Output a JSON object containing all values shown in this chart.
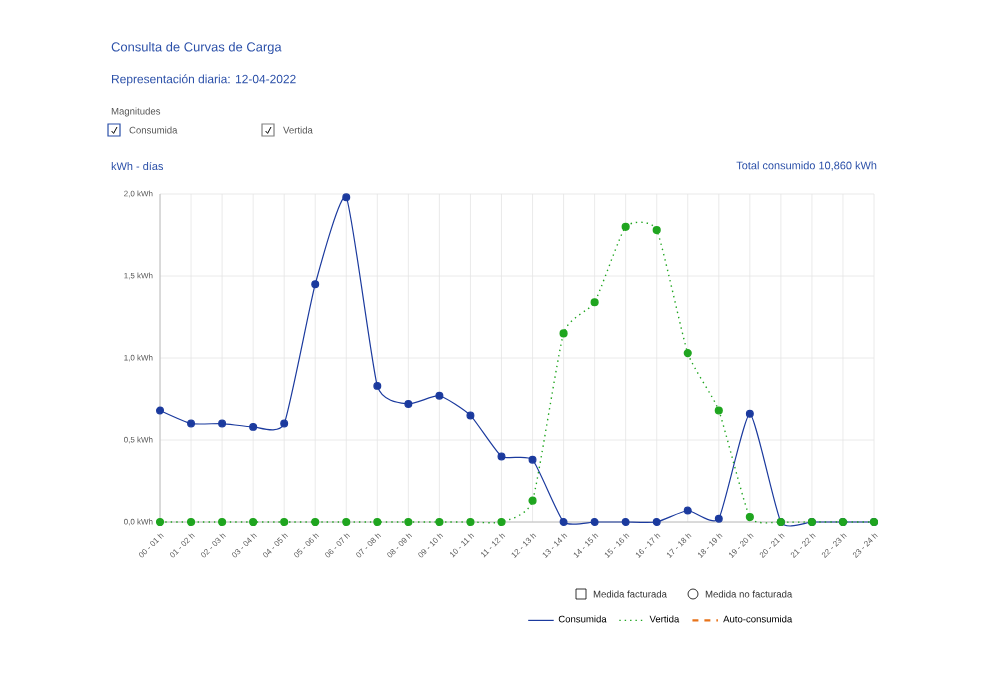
{
  "chart_data": {
    "type": "line",
    "title": "Consulta de Curvas de Carga",
    "subtitle": "Representación diaria: 12-04-2022",
    "ylabel": "kWh - días",
    "annotations": [
      "Magnitudes",
      "Consumida",
      "Vertida",
      "Total consumido 10,860 kWh",
      "Medida facturada",
      "Medida no facturada"
    ],
    "categories": [
      "00 - 01 h",
      "01 - 02 h",
      "02 - 03 h",
      "03 - 04 h",
      "04 - 05 h",
      "05 - 06 h",
      "06 - 07 h",
      "07 - 08 h",
      "08 - 09 h",
      "09 - 10 h",
      "10 - 11 h",
      "11 - 12 h",
      "12 - 13 h",
      "13 - 14 h",
      "14 - 15 h",
      "15 - 16 h",
      "16 - 17 h",
      "17 - 18 h",
      "18 - 19 h",
      "19 - 20 h",
      "20 - 21 h",
      "21 - 22 h",
      "22 - 23 h",
      "23 - 24 h"
    ],
    "series": [
      {
        "name": "Consumida",
        "color": "#1b3a9e",
        "line_style": "solid",
        "marker": "circle",
        "values": [
          0.68,
          0.6,
          0.6,
          0.58,
          0.6,
          1.45,
          1.98,
          0.83,
          0.72,
          0.77,
          0.65,
          0.4,
          0.38,
          0,
          0,
          0,
          0,
          0.07,
          0.02,
          0.66,
          0,
          0,
          0,
          0
        ]
      },
      {
        "name": "Vertida",
        "color": "#1fa51f",
        "line_style": "dotted",
        "marker": "circle",
        "values": [
          0,
          0,
          0,
          0,
          0,
          0,
          0,
          0,
          0,
          0,
          0,
          0,
          0.13,
          1.15,
          1.34,
          1.8,
          1.78,
          1.03,
          0.68,
          0.03,
          0,
          0,
          0,
          0
        ]
      },
      {
        "name": "Auto-consumida",
        "color": "#e8731a",
        "line_style": "dashed",
        "marker": "none",
        "values": [
          null,
          null,
          null,
          null,
          null,
          null,
          null,
          null,
          null,
          null,
          null,
          null,
          null,
          null,
          null,
          null,
          null,
          null,
          null,
          null,
          null,
          null,
          null,
          null
        ]
      }
    ],
    "ylim": [
      0,
      2.0
    ],
    "yticks": [
      {
        "value": 0,
        "label": "0,0 kWh"
      },
      {
        "value": 0.5,
        "label": "0,5 kWh"
      },
      {
        "value": 1.0,
        "label": "1,0 kWh"
      },
      {
        "value": 1.5,
        "label": "1,5 kWh"
      },
      {
        "value": 2.0,
        "label": "2,0 kWh"
      }
    ],
    "grid": true,
    "legend": "bottom right"
  }
}
